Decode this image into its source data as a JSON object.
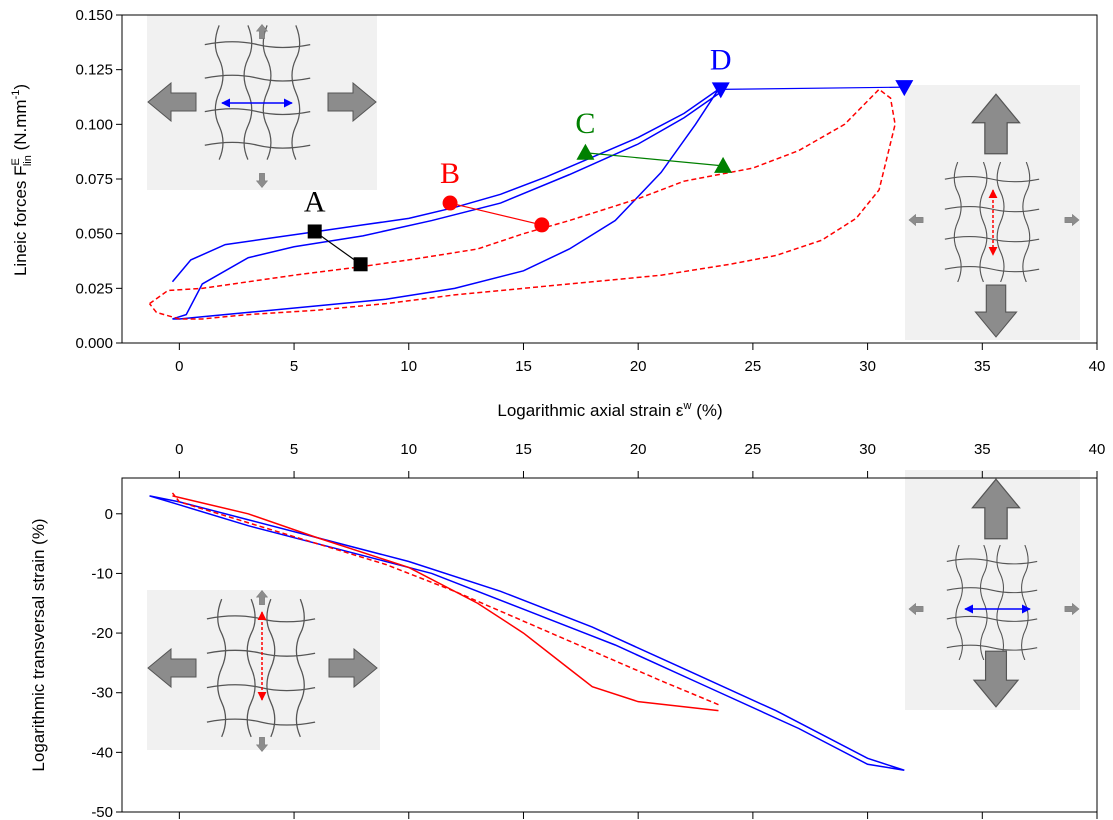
{
  "chart_data": [
    {
      "type": "line",
      "ylabel": [
        "Lineic forces F",
        "E",
        "lin",
        " (N.mm",
        "-1",
        ")"
      ],
      "xlabel": [
        "Logarithmic axial strain ε",
        "w",
        " (%)"
      ],
      "xaxis": "bottom",
      "xlim": [
        -2.5,
        40
      ],
      "xticks": [
        0,
        5,
        10,
        15,
        20,
        25,
        30,
        35,
        40
      ],
      "ylim": [
        0,
        0.15
      ],
      "yticks": [
        {
          "value": 0,
          "label": "0.000"
        },
        0.025,
        {
          "value": 0.05,
          "label": "0.050"
        },
        0.075,
        {
          "value": 0.1,
          "label": "0.100"
        },
        0.125,
        {
          "value": 0.15,
          "label": "0.150"
        }
      ],
      "series": [
        {
          "color": "#0000ff",
          "style": "solid",
          "x": [
            -0.3,
            0.5,
            2,
            4,
            6,
            8,
            10,
            12,
            14,
            16,
            18,
            20,
            22,
            23.5,
            22.5,
            21,
            19,
            17,
            15,
            12,
            9,
            6,
            3,
            1,
            0,
            -0.3,
            0.3,
            1,
            3,
            5,
            8,
            11,
            14,
            17,
            20,
            22,
            23.5
          ],
          "values": [
            0.028,
            0.038,
            0.045,
            0.048,
            0.051,
            0.054,
            0.057,
            0.062,
            0.068,
            0.076,
            0.085,
            0.094,
            0.105,
            0.116,
            0.1,
            0.078,
            0.056,
            0.043,
            0.033,
            0.025,
            0.02,
            0.017,
            0.014,
            0.012,
            0.011,
            0.011,
            0.013,
            0.027,
            0.039,
            0.044,
            0.049,
            0.056,
            0.064,
            0.077,
            0.091,
            0.103,
            0.114
          ]
        },
        {
          "color": "#ff0000",
          "style": "dashed",
          "x": [
            -1.3,
            -0.5,
            1,
            3,
            5,
            8,
            10,
            13,
            15,
            17,
            20,
            22,
            25,
            27,
            29,
            30.5,
            31,
            31.2,
            30.5,
            29.5,
            28,
            26,
            24,
            21,
            18,
            15,
            12,
            9,
            6,
            3,
            1,
            0,
            -1,
            -1.3
          ],
          "values": [
            0.018,
            0.024,
            0.025,
            0.028,
            0.031,
            0.035,
            0.038,
            0.043,
            0.05,
            0.056,
            0.066,
            0.074,
            0.08,
            0.088,
            0.1,
            0.116,
            0.112,
            0.1,
            0.07,
            0.057,
            0.047,
            0.04,
            0.036,
            0.031,
            0.028,
            0.025,
            0.022,
            0.018,
            0.015,
            0.013,
            0.011,
            0.011,
            0.014,
            0.018
          ]
        },
        {
          "label": "A",
          "color": "#000000",
          "style": "solid",
          "marker": "square",
          "x": [
            5.9,
            7.9
          ],
          "values": [
            0.051,
            0.036
          ]
        },
        {
          "label": "B",
          "color": "#ff0000",
          "style": "solid",
          "marker": "circle",
          "x": [
            11.8,
            15.8
          ],
          "values": [
            0.064,
            0.054
          ]
        },
        {
          "label": "C",
          "color": "#008000",
          "style": "solid",
          "marker": "triangle-up",
          "x": [
            17.7,
            23.7
          ],
          "values": [
            0.087,
            0.081
          ]
        },
        {
          "label": "D",
          "color": "#0000ff",
          "style": "solid",
          "marker": "triangle-down",
          "x": [
            23.6,
            31.6
          ],
          "values": [
            0.116,
            0.117
          ]
        }
      ]
    },
    {
      "type": "line",
      "ylabel": "Logarithmic transversal strain (%)",
      "xaxis": "top",
      "xlim": [
        -2.5,
        40
      ],
      "xticks": [
        0,
        5,
        10,
        15,
        20,
        25,
        30,
        35,
        40
      ],
      "ylim": [
        -50,
        6
      ],
      "yticks": [
        0,
        -10,
        -20,
        -30,
        -40,
        -50
      ],
      "series": [
        {
          "color": "#0000ff",
          "style": "solid",
          "x": [
            -1.3,
            0,
            3,
            6,
            10,
            14,
            18,
            22,
            26,
            30,
            31.6,
            30,
            27,
            23,
            19,
            15,
            11,
            7,
            3,
            0,
            -1.3
          ],
          "values": [
            3,
            2,
            -1,
            -4,
            -8,
            -13,
            -19,
            -26,
            -33,
            -41,
            -43,
            -42,
            -36,
            -29,
            -22,
            -16,
            -10,
            -6,
            -2,
            1.5,
            3
          ]
        },
        {
          "color": "#ff0000",
          "style": "solid",
          "x": [
            -0.3,
            3,
            6,
            10,
            13,
            15,
            17,
            18,
            20,
            23.5
          ],
          "values": [
            3,
            0,
            -4,
            -9,
            -15,
            -20,
            -26,
            -29,
            -31.5,
            -33
          ]
        },
        {
          "color": "#ff0000",
          "style": "dashed",
          "x": [
            23.5,
            21,
            18,
            15,
            12,
            9,
            6,
            3,
            0,
            -0.3
          ],
          "values": [
            -32,
            -28,
            -23,
            -18,
            -13,
            -8.5,
            -5,
            -1.5,
            2,
            3.5
          ]
        }
      ]
    }
  ]
}
